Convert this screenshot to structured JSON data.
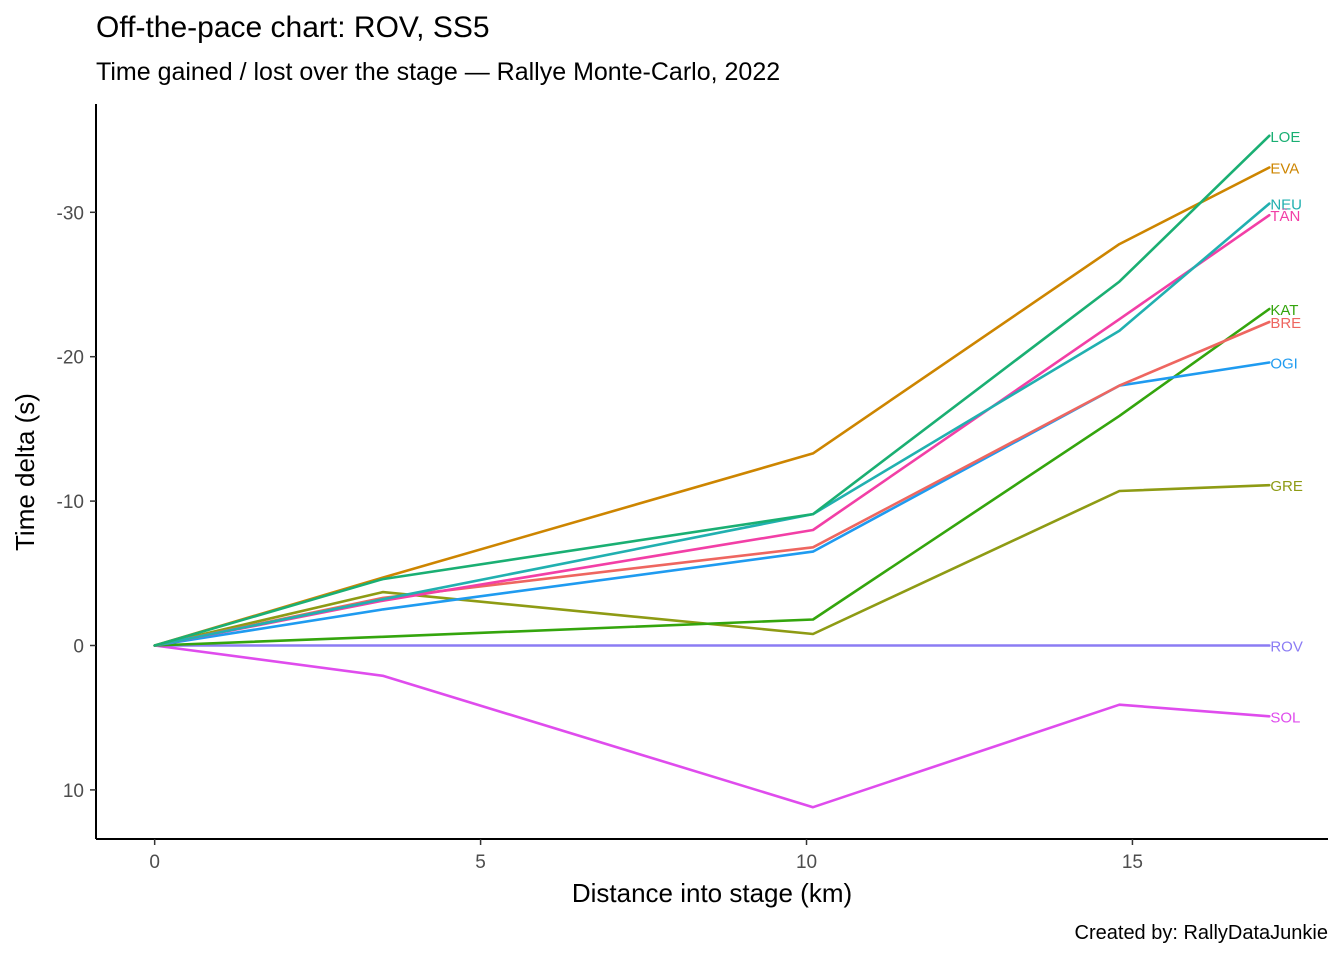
{
  "chart_data": {
    "type": "line",
    "title": "Off-the-pace chart: ROV, SS5",
    "subtitle": "Time gained / lost over the stage — Rallye Monte-Carlo, 2022",
    "xlabel": "Distance into stage (km)",
    "ylabel": "Time delta (s)",
    "caption": "Created by: RallyDataJunkie",
    "xlim": [
      -0.9,
      18.0
    ],
    "ylim": [
      13.4,
      -37.5
    ],
    "y_axis_reversed": true,
    "grid": false,
    "legend": "none (direct labels at line ends)",
    "x_ticks": [
      0,
      5,
      10,
      15
    ],
    "x_tick_labels": [
      "0",
      "5",
      "10",
      "15"
    ],
    "y_ticks": [
      10,
      0,
      -10,
      -20,
      -30
    ],
    "y_tick_labels": [
      "10",
      "0",
      "-10",
      "-20",
      "-30"
    ],
    "x": [
      0,
      3.5,
      10.1,
      14.8,
      17.1
    ],
    "series": [
      {
        "name": "LOE",
        "color": "#1AAF73",
        "values": [
          0,
          -4.6,
          -9.1,
          -25.2,
          -35.3
        ]
      },
      {
        "name": "EVA",
        "color": "#CD8500",
        "values": [
          0,
          -4.7,
          -13.3,
          -27.8,
          -33.1
        ]
      },
      {
        "name": "NEU",
        "color": "#21B0B0",
        "values": [
          0,
          -3.2,
          -9.1,
          -21.8,
          -30.6
        ]
      },
      {
        "name": "TÄN",
        "color": "#F23FA6",
        "values": [
          0,
          -3.1,
          -8.0,
          -22.6,
          -29.8
        ]
      },
      {
        "name": "KAT",
        "color": "#34A50D",
        "values": [
          0,
          -0.6,
          -1.8,
          -15.9,
          -23.3
        ]
      },
      {
        "name": "BRE",
        "color": "#EE6660",
        "values": [
          0,
          -3.3,
          -6.8,
          -18.0,
          -22.4
        ]
      },
      {
        "name": "OGI",
        "color": "#1F9BF0",
        "values": [
          0,
          -2.5,
          -6.5,
          -18.0,
          -19.6
        ]
      },
      {
        "name": "GRE",
        "color": "#8E9B14",
        "values": [
          0,
          -3.7,
          -0.8,
          -10.7,
          -11.1
        ]
      },
      {
        "name": "ROV",
        "color": "#8B7CF4",
        "values": [
          0,
          0,
          0,
          0,
          0
        ]
      },
      {
        "name": "SOL",
        "color": "#DF4CED",
        "values": [
          0,
          2.1,
          11.2,
          4.1,
          4.9
        ]
      }
    ]
  }
}
